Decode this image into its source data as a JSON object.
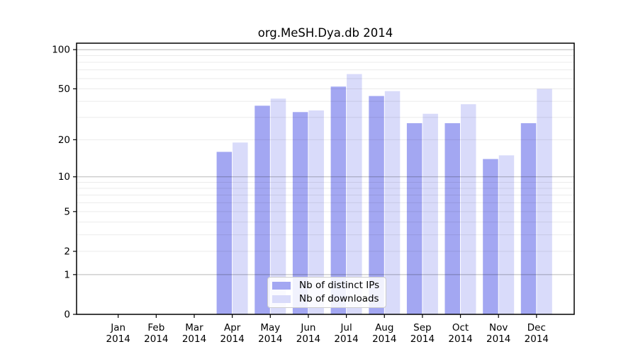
{
  "title": "org.MeSH.Dya.db 2014",
  "colors": {
    "distinct_ips": "#a3a7f2",
    "downloads": "#d9dbfa",
    "grid_minor": "rgba(0,0,0,0.08)",
    "grid_major": "rgba(0,0,0,0.28)",
    "axis": "#000000",
    "text": "#000000",
    "legend_border": "#cccccc"
  },
  "chart_data": {
    "type": "bar",
    "title": "org.MeSH.Dya.db 2014",
    "categories": [
      "Jan 2014",
      "Feb 2014",
      "Mar 2014",
      "Apr 2014",
      "May 2014",
      "Jun 2014",
      "Jul 2014",
      "Aug 2014",
      "Sep 2014",
      "Oct 2014",
      "Nov 2014",
      "Dec 2014"
    ],
    "series": [
      {
        "name": "Nb of distinct IPs",
        "color_key": "distinct_ips",
        "values": [
          0,
          0,
          0,
          16,
          37,
          33,
          52,
          44,
          27,
          27,
          14,
          27
        ]
      },
      {
        "name": "Nb of downloads",
        "color_key": "downloads",
        "values": [
          0,
          0,
          0,
          19,
          42,
          34,
          65,
          48,
          32,
          38,
          15,
          50
        ]
      }
    ],
    "yscale": "log1p",
    "ylim": [
      0,
      112
    ],
    "y_ticks": [
      0,
      1,
      2,
      5,
      10,
      20,
      50,
      100
    ],
    "y_minor_gridlines": [
      2,
      3,
      4,
      5,
      6,
      7,
      8,
      9,
      20,
      30,
      40,
      50,
      60,
      70,
      80,
      90
    ],
    "y_major_gridlines": [
      1,
      10,
      100
    ],
    "xlabel": "",
    "ylabel": "",
    "grid": true,
    "legend_position": "lower center"
  }
}
